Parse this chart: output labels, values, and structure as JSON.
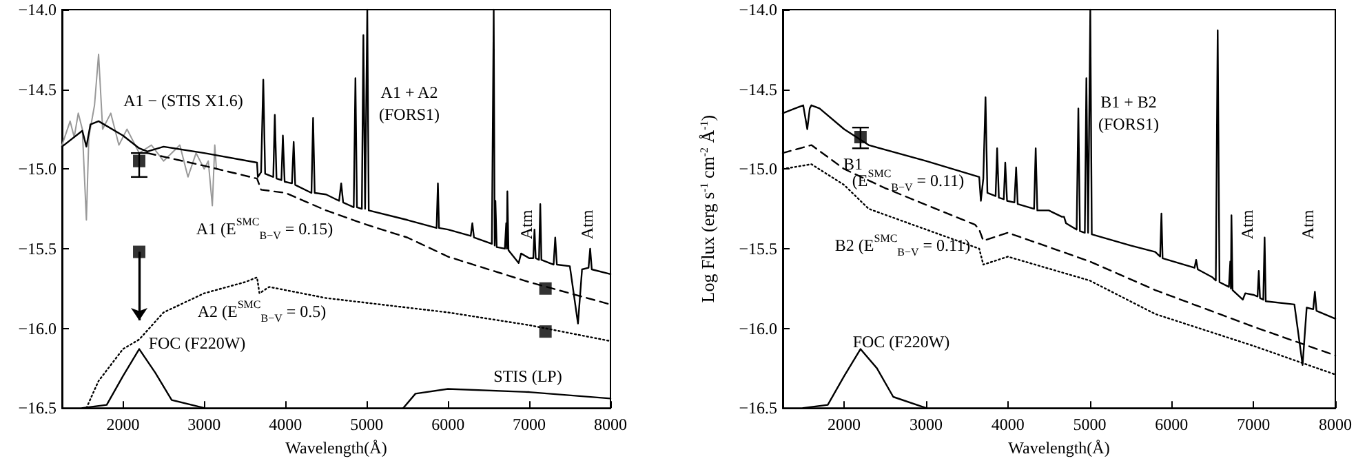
{
  "chart_data": [
    {
      "type": "line",
      "xlabel": "Wavelength(Å)",
      "xlim": [
        1250,
        8000
      ],
      "xticks": [
        2000,
        3000,
        4000,
        5000,
        6000,
        7000,
        8000
      ],
      "ylim": [
        -16.5,
        -14.0
      ],
      "yticks": [
        {
          "value": -16.5,
          "label": "−16.5"
        },
        {
          "value": -16.0,
          "label": "−16.0"
        },
        {
          "value": -15.5,
          "label": "−15.5"
        },
        {
          "value": -15.0,
          "label": "−15.0"
        },
        {
          "value": -14.5,
          "label": "−14.5"
        },
        {
          "value": -14.0,
          "label": "−14.0"
        }
      ],
      "grid": false,
      "marker": "none",
      "series": [
        {
          "color": "#999999",
          "line_style": "solid",
          "x": [
            1250,
            1350,
            1400,
            1450,
            1500,
            1550,
            1580,
            1650,
            1700,
            1750,
            1850,
            1950,
            2050,
            2200,
            2350,
            2500,
            2700,
            2800,
            2900,
            3000,
            3050,
            3100,
            3130,
            3150
          ],
          "values": [
            -14.85,
            -14.7,
            -14.8,
            -14.65,
            -14.75,
            -15.32,
            -14.8,
            -14.6,
            -14.28,
            -14.75,
            -14.65,
            -14.85,
            -14.75,
            -14.9,
            -14.85,
            -14.95,
            -14.85,
            -15.05,
            -14.9,
            -15.0,
            -14.95,
            -15.23,
            -14.85,
            -15.0
          ]
        },
        {
          "color": "#000000",
          "line_style": "solid",
          "x": [
            1250,
            1500,
            1550,
            1600,
            1700,
            2000,
            2200,
            2300,
            2500,
            3000,
            3650,
            3660,
            3700,
            3727,
            3750,
            3850,
            3869,
            3890,
            3950,
            3968,
            3990,
            4080,
            4101,
            4120,
            4320,
            4340,
            4360,
            4500,
            4660,
            4686,
            4710,
            4840,
            4861,
            4880,
            4940,
            4959,
            4980,
            4990,
            5007,
            5025,
            5500,
            5860,
            5876,
            5890,
            6000,
            6280,
            6300,
            6320,
            6540,
            6563,
            6575,
            6584,
            6600,
            6700,
            6717,
            6724,
            6731,
            6745,
            6870,
            6900,
            7000,
            7050,
            7065,
            7080,
            7120,
            7136,
            7150,
            7300,
            7320,
            7340,
            7500,
            7600,
            7650,
            7730,
            7750,
            7770,
            8000
          ],
          "values": [
            -14.86,
            -14.76,
            -14.86,
            -14.72,
            -14.7,
            -14.79,
            -14.87,
            -14.89,
            -14.86,
            -14.9,
            -14.96,
            -15.05,
            -15.02,
            -14.44,
            -15.03,
            -15.05,
            -14.66,
            -15.06,
            -15.07,
            -14.79,
            -15.08,
            -15.09,
            -14.83,
            -15.1,
            -15.15,
            -14.68,
            -15.15,
            -15.16,
            -15.2,
            -15.09,
            -15.21,
            -15.24,
            -14.43,
            -15.24,
            -15.25,
            -14.16,
            -15.25,
            -15.25,
            -14.0,
            -15.26,
            -15.32,
            -15.37,
            -15.09,
            -15.37,
            -15.38,
            -15.42,
            -15.34,
            -15.43,
            -15.47,
            -14.0,
            -15.48,
            -15.2,
            -15.49,
            -15.5,
            -15.34,
            -15.5,
            -15.14,
            -15.51,
            -15.59,
            -15.53,
            -15.56,
            -15.56,
            -15.38,
            -15.56,
            -15.57,
            -15.22,
            -15.57,
            -15.6,
            -15.43,
            -15.6,
            -15.61,
            -15.97,
            -15.63,
            -15.62,
            -15.5,
            -15.63,
            -15.66
          ]
        },
        {
          "color": "#000000",
          "line_style": "dashed",
          "x": [
            2300,
            3000,
            3650,
            3700,
            4000,
            4500,
            5000,
            5500,
            6000,
            7000,
            8000
          ],
          "values": [
            -14.9,
            -14.98,
            -15.06,
            -15.13,
            -15.15,
            -15.26,
            -15.35,
            -15.43,
            -15.55,
            -15.71,
            -15.85
          ]
        },
        {
          "color": "#000000",
          "line_style": "dotted",
          "x": [
            1550,
            1700,
            2000,
            2200,
            2500,
            3000,
            3500,
            3650,
            3680,
            3800,
            4500,
            5000,
            6000,
            7000,
            8000
          ],
          "values": [
            -16.5,
            -16.33,
            -16.13,
            -16.07,
            -15.9,
            -15.78,
            -15.71,
            -15.68,
            -15.78,
            -15.74,
            -15.81,
            -15.84,
            -15.9,
            -15.98,
            -16.08
          ]
        },
        {
          "color": "#000000",
          "line_style": "solid",
          "x": [
            1500,
            1800,
            2000,
            2200,
            2400,
            2600,
            3000
          ],
          "values": [
            -16.5,
            -16.48,
            -16.3,
            -16.13,
            -16.28,
            -16.45,
            -16.5
          ]
        },
        {
          "color": "#000000",
          "line_style": "solid",
          "x": [
            5450,
            5600,
            6000,
            7000,
            8000
          ],
          "values": [
            -16.5,
            -16.41,
            -16.38,
            -16.4,
            -16.44
          ]
        },
        {
          "type": "scatter",
          "marker": "square",
          "color": "#000000",
          "x": [
            2200,
            2200,
            7200,
            7200
          ],
          "values": [
            -14.95,
            -15.52,
            -15.75,
            -16.02
          ],
          "errors": [
            [
              -15.05,
              -14.9
            ],
            [
              -15.95,
              -15.52
            ],
            null,
            null
          ]
        }
      ],
      "annotations": [
        "A1 − (STIS X1.6)",
        "A1 + A2\n(FORS1)",
        "A1 (E$^{SMC}$$_{B−V}$ = 0.15)",
        "A2 (E$^{SMC}$$_{B−V}$ = 0.5)",
        "FOC (F220W)",
        "STIS (LP)",
        "Atm",
        "Atm"
      ]
    },
    {
      "type": "line",
      "xlabel": "Wavelength(Å)",
      "ylabel": "Log Flux (erg s$^{-1}$ cm$^{-2}$ Å$^{-1}$)",
      "xlim": [
        1250,
        8000
      ],
      "xticks": [
        2000,
        3000,
        4000,
        5000,
        6000,
        7000,
        8000
      ],
      "ylim": [
        -16.5,
        -14.0
      ],
      "yticks": [
        {
          "value": -16.5,
          "label": "−16.5"
        },
        {
          "value": -16.0,
          "label": "−16.0"
        },
        {
          "value": -15.5,
          "label": "−15.5"
        },
        {
          "value": -15.0,
          "label": "−15.0"
        },
        {
          "value": -14.5,
          "label": "−14.5"
        },
        {
          "value": -14.0,
          "label": "−14.0"
        }
      ],
      "grid": false,
      "marker": "none",
      "series": [
        {
          "color": "#000000",
          "line_style": "solid",
          "x": [
            1250,
            1400,
            1500,
            1550,
            1580,
            1600,
            1700,
            2000,
            2300,
            3000,
            3650,
            3670,
            3700,
            3727,
            3750,
            3850,
            3869,
            3890,
            3950,
            3968,
            3990,
            4080,
            4101,
            4120,
            4320,
            4340,
            4360,
            4500,
            4660,
            4686,
            4710,
            4840,
            4861,
            4880,
            4940,
            4959,
            4980,
            4990,
            5007,
            5025,
            5500,
            5800,
            5860,
            5876,
            5890,
            6280,
            6300,
            6320,
            6500,
            6540,
            6563,
            6585,
            6700,
            6717,
            6724,
            6731,
            6745,
            6870,
            6900,
            7000,
            7050,
            7065,
            7080,
            7120,
            7136,
            7150,
            7500,
            7600,
            7650,
            7730,
            7750,
            7770,
            8000
          ],
          "values": [
            -14.65,
            -14.62,
            -14.6,
            -14.75,
            -14.62,
            -14.6,
            -14.62,
            -14.75,
            -14.85,
            -14.95,
            -15.05,
            -15.2,
            -15.06,
            -14.55,
            -15.15,
            -15.17,
            -14.87,
            -15.18,
            -15.19,
            -14.96,
            -15.2,
            -15.21,
            -14.99,
            -15.22,
            -15.25,
            -14.87,
            -15.26,
            -15.26,
            -15.3,
            -15.3,
            -15.34,
            -15.38,
            -14.62,
            -15.39,
            -15.4,
            -14.43,
            -15.4,
            -15.4,
            -14.0,
            -15.41,
            -15.48,
            -15.52,
            -15.55,
            -15.28,
            -15.56,
            -15.62,
            -15.57,
            -15.63,
            -15.68,
            -15.7,
            -14.13,
            -15.71,
            -15.74,
            -15.58,
            -15.75,
            -15.29,
            -15.76,
            -15.82,
            -15.78,
            -15.79,
            -15.8,
            -15.64,
            -15.81,
            -15.82,
            -15.43,
            -15.83,
            -15.85,
            -16.23,
            -15.87,
            -15.88,
            -15.77,
            -15.89,
            -15.94
          ]
        },
        {
          "color": "#000000",
          "line_style": "dashed",
          "x": [
            1250,
            1600,
            2000,
            2500,
            3600,
            3650,
            3700,
            4000,
            5000,
            5800,
            7000,
            8000
          ],
          "values": [
            -14.9,
            -14.85,
            -15.0,
            -15.12,
            -15.35,
            -15.38,
            -15.45,
            -15.4,
            -15.58,
            -15.76,
            -15.99,
            -16.17
          ]
        },
        {
          "color": "#000000",
          "line_style": "dotted",
          "x": [
            1250,
            1600,
            2000,
            2300,
            3650,
            3700,
            4000,
            5000,
            5800,
            7000,
            8000
          ],
          "values": [
            -15.0,
            -14.97,
            -15.1,
            -15.25,
            -15.5,
            -15.6,
            -15.55,
            -15.7,
            -15.91,
            -16.11,
            -16.29
          ]
        },
        {
          "color": "#000000",
          "line_style": "solid",
          "x": [
            1500,
            1800,
            2000,
            2200,
            2400,
            2600,
            3000
          ],
          "values": [
            -16.5,
            -16.48,
            -16.3,
            -16.13,
            -16.25,
            -16.43,
            -16.5
          ]
        },
        {
          "type": "scatter",
          "marker": "square",
          "color": "#000000",
          "x": [
            2200
          ],
          "values": [
            -14.8
          ],
          "errors": [
            [
              -14.87,
              -14.74
            ]
          ]
        }
      ],
      "annotations": [
        "B1 + B2\n(FORS1)",
        "B1",
        "(E$^{SMC}$$_{B−V}$ = 0.11)",
        "B2 (E$^{SMC}$$_{B−V}$ = 0.11)",
        "FOC (F220W)",
        "Atm",
        "Atm"
      ]
    }
  ]
}
